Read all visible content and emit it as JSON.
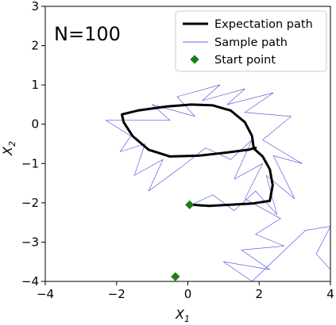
{
  "chart_data": {
    "type": "line",
    "annotation": "N=100",
    "xlabel": "X",
    "xlabel_sub": "1",
    "ylabel": "X",
    "ylabel_sub": "2",
    "xlim": [
      -4,
      4
    ],
    "ylim": [
      -4,
      3
    ],
    "x_ticks": [
      -4,
      -2,
      0,
      2,
      4
    ],
    "x_tick_labels": [
      "−4",
      "−2",
      "0",
      "2",
      "4"
    ],
    "y_ticks": [
      -4,
      -3,
      -2,
      -1,
      0,
      1,
      2,
      3
    ],
    "y_tick_labels": [
      "−4",
      "−3",
      "−2",
      "−1",
      "0",
      "1",
      "2",
      "3"
    ],
    "grid": false,
    "legend_position": "top-right",
    "colors": {
      "expectation": "#000000",
      "sample": "#2b33d6",
      "start": "#1a7f14"
    },
    "legend": [
      {
        "label": "Expectation path",
        "kind": "thick-line"
      },
      {
        "label": "Sample path",
        "kind": "thin-line"
      },
      {
        "label": "Start point",
        "kind": "diamond"
      }
    ],
    "series": [
      {
        "name": "Expectation path",
        "points": [
          [
            0.1,
            -2.05
          ],
          [
            0.6,
            -2.08
          ],
          [
            1.2,
            -2.05
          ],
          [
            1.8,
            -2.02
          ],
          [
            2.3,
            -1.95
          ],
          [
            2.38,
            -1.55
          ],
          [
            2.3,
            -1.15
          ],
          [
            2.1,
            -0.82
          ],
          [
            1.85,
            -0.62
          ],
          [
            1.8,
            -0.3
          ],
          [
            1.6,
            0.05
          ],
          [
            1.2,
            0.35
          ],
          [
            0.7,
            0.48
          ],
          [
            0.1,
            0.5
          ],
          [
            -0.6,
            0.45
          ],
          [
            -1.4,
            0.35
          ],
          [
            -1.85,
            0.25
          ],
          [
            -1.8,
            0.05
          ],
          [
            -1.55,
            -0.3
          ],
          [
            -1.1,
            -0.65
          ],
          [
            -0.5,
            -0.82
          ],
          [
            0.3,
            -0.8
          ],
          [
            1.1,
            -0.72
          ],
          [
            1.7,
            -0.65
          ],
          [
            1.9,
            -0.6
          ]
        ]
      },
      {
        "name": "Sample path",
        "points": [
          [
            0.1,
            -2.05
          ],
          [
            0.7,
            -1.8
          ],
          [
            1.3,
            -2.2
          ],
          [
            1.9,
            -1.7
          ],
          [
            2.5,
            -2.3
          ],
          [
            2.2,
            -1.3
          ],
          [
            3.0,
            -1.9
          ],
          [
            2.4,
            -0.8
          ],
          [
            3.2,
            -1.0
          ],
          [
            2.1,
            -0.4
          ],
          [
            2.9,
            0.2
          ],
          [
            1.6,
            0.3
          ],
          [
            2.4,
            0.8
          ],
          [
            1.1,
            0.5
          ],
          [
            1.6,
            0.9
          ],
          [
            0.4,
            0.6
          ],
          [
            0.9,
            1.0
          ],
          [
            -0.3,
            0.7
          ],
          [
            0.2,
            0.2
          ],
          [
            -1.0,
            0.5
          ],
          [
            -0.5,
            0.1
          ],
          [
            -2.3,
            0.1
          ],
          [
            -1.6,
            -0.3
          ],
          [
            -1.9,
            -0.7
          ],
          [
            -1.2,
            -0.5
          ],
          [
            -1.5,
            -1.3
          ],
          [
            -0.7,
            -0.9
          ],
          [
            -1.1,
            -1.7
          ],
          [
            -0.2,
            -1.1
          ],
          [
            0.5,
            -0.6
          ],
          [
            1.2,
            -0.9
          ],
          [
            1.8,
            -0.4
          ],
          [
            1.3,
            -1.4
          ],
          [
            2.1,
            -1.0
          ],
          [
            1.6,
            -1.9
          ],
          [
            2.6,
            -2.4
          ],
          [
            1.9,
            -2.8
          ],
          [
            2.7,
            -3.1
          ],
          [
            1.5,
            -3.2
          ],
          [
            2.3,
            -3.7
          ],
          [
            1.0,
            -3.5
          ],
          [
            1.8,
            -4.0
          ],
          [
            3.3,
            -2.7
          ],
          [
            4.0,
            -2.6
          ],
          [
            3.6,
            -3.3
          ],
          [
            4.0,
            -3.7
          ]
        ]
      }
    ],
    "start_points": [
      [
        0.05,
        -2.05
      ],
      [
        -0.35,
        -3.88
      ]
    ]
  }
}
